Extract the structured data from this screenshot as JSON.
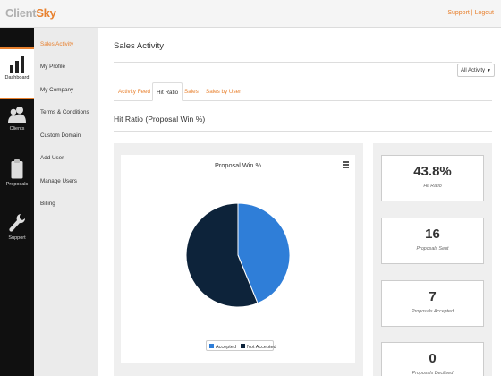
{
  "app": {
    "logo_client": "Client",
    "logo_sky": "Sky"
  },
  "header": {
    "support_link": "Support",
    "separator": " | ",
    "logout_link": "Logout"
  },
  "rail": {
    "items": [
      {
        "label": "Dashboard",
        "icon": "bar-chart-icon"
      },
      {
        "label": "Clients",
        "icon": "users-icon"
      },
      {
        "label": "Proposals",
        "icon": "document-icon"
      },
      {
        "label": "Support",
        "icon": "wrench-icon"
      }
    ]
  },
  "submenu": {
    "items": [
      {
        "label": "Sales Activity"
      },
      {
        "label": "My Profile"
      },
      {
        "label": "My Company"
      },
      {
        "label": "Terms & Conditions"
      },
      {
        "label": "Custom Domain"
      },
      {
        "label": "Add User"
      },
      {
        "label": "Manage Users"
      },
      {
        "label": "Billing"
      }
    ]
  },
  "main": {
    "title": "Sales Activity",
    "filter": {
      "selected": "All Activity"
    },
    "tabs": [
      {
        "label": "Activity Feed"
      },
      {
        "label": "Hit Ratio"
      },
      {
        "label": "Sales"
      },
      {
        "label": "Sales by User"
      }
    ],
    "section_title": "Hit Ratio (Proposal Win %)"
  },
  "chart_data": {
    "type": "pie",
    "title": "Proposal Win %",
    "slices": [
      {
        "name": "Accepted",
        "value": 43.8,
        "color": "#2f7ed8"
      },
      {
        "name": "Not Accepted",
        "value": 56.2,
        "color": "#0d233a"
      }
    ],
    "legend_position": "bottom"
  },
  "stats": [
    {
      "value": "43.8%",
      "label": "Hit Ratio"
    },
    {
      "value": "16",
      "label": "Proposals Sent"
    },
    {
      "value": "7",
      "label": "Proposals Accepted"
    },
    {
      "value": "0",
      "label": "Proposals Declined"
    }
  ],
  "colors": {
    "accent": "#e8812f",
    "rail_bg": "#101010"
  }
}
